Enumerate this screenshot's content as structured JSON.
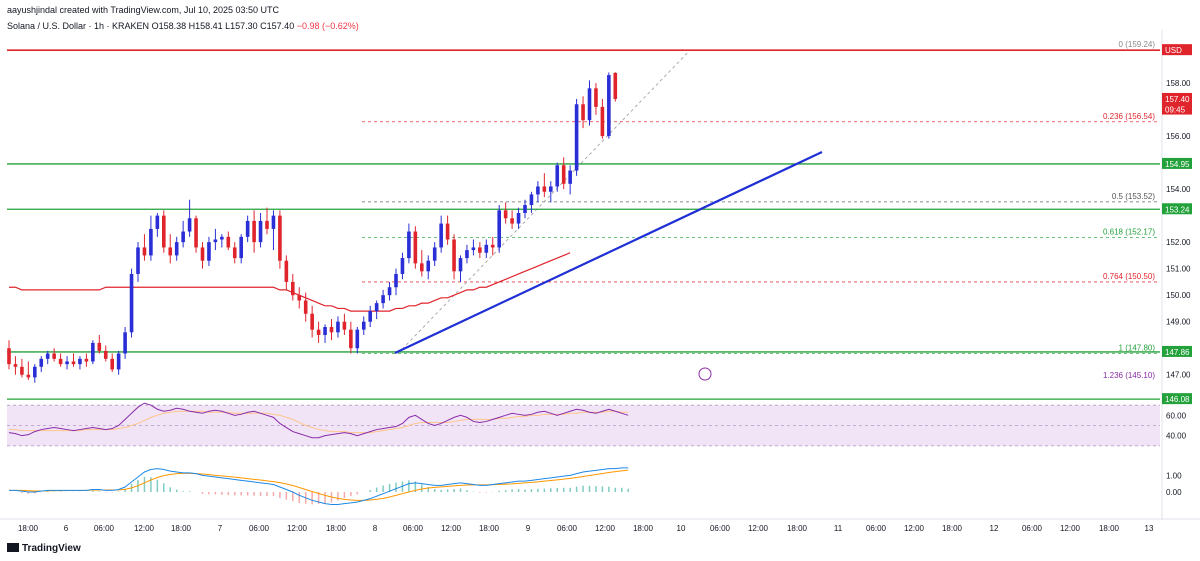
{
  "header": {
    "attribution": "aayushjindal created with TradingView.com, Jul 10, 2025 03:50 UTC",
    "symbol_prefix": "Solana / U.S. Dollar · 1h · KRAKEN",
    "ohlc": "O158.38 H158.41 L157.30 C157.40",
    "change": "−0.98 (−0.62%)"
  },
  "footer": {
    "brand": "TradingView"
  },
  "colors": {
    "up": "#2a2ed6",
    "down": "#e0242c",
    "ema": "#e0242c",
    "trend": "#1f2fd6",
    "support": "#23a13a",
    "fib": "#e0242c",
    "rsi": "#8a2ba8",
    "macd": "#1e88e5",
    "signal": "#ff9800"
  },
  "chart_data": {
    "type": "candlestick",
    "x_tick_labels": [
      "18:00",
      "6",
      "06:00",
      "12:00",
      "18:00",
      "7",
      "06:00",
      "12:00",
      "18:00",
      "8",
      "06:00",
      "12:00",
      "18:00",
      "9",
      "06:00",
      "12:00",
      "18:00",
      "10",
      "06:00",
      "12:00",
      "18:00",
      "11",
      "06:00",
      "12:00",
      "18:00",
      "12",
      "06:00",
      "12:00",
      "18:00",
      "13"
    ],
    "y_tick_labels": [
      "158.00",
      "156.00",
      "154.00",
      "152.00",
      "151.00",
      "150.00",
      "149.00",
      "147.00"
    ],
    "ylim": [
      146.5,
      160.0
    ],
    "candles": [
      {
        "o": 148.0,
        "h": 148.3,
        "l": 147.2,
        "c": 147.4
      },
      {
        "o": 147.4,
        "h": 147.7,
        "l": 147.0,
        "c": 147.3
      },
      {
        "o": 147.3,
        "h": 147.6,
        "l": 146.9,
        "c": 147.0
      },
      {
        "o": 147.0,
        "h": 147.5,
        "l": 146.8,
        "c": 146.9
      },
      {
        "o": 146.9,
        "h": 147.4,
        "l": 146.7,
        "c": 147.3
      },
      {
        "o": 147.3,
        "h": 147.7,
        "l": 147.1,
        "c": 147.6
      },
      {
        "o": 147.6,
        "h": 147.9,
        "l": 147.4,
        "c": 147.8
      },
      {
        "o": 147.8,
        "h": 148.0,
        "l": 147.5,
        "c": 147.6
      },
      {
        "o": 147.6,
        "h": 147.8,
        "l": 147.3,
        "c": 147.4
      },
      {
        "o": 147.4,
        "h": 147.7,
        "l": 147.2,
        "c": 147.5
      },
      {
        "o": 147.5,
        "h": 147.8,
        "l": 147.3,
        "c": 147.4
      },
      {
        "o": 147.4,
        "h": 147.7,
        "l": 147.2,
        "c": 147.6
      },
      {
        "o": 147.6,
        "h": 147.8,
        "l": 147.3,
        "c": 147.5
      },
      {
        "o": 147.5,
        "h": 148.3,
        "l": 147.4,
        "c": 148.2
      },
      {
        "o": 148.2,
        "h": 148.5,
        "l": 147.8,
        "c": 147.9
      },
      {
        "o": 147.9,
        "h": 148.1,
        "l": 147.5,
        "c": 147.6
      },
      {
        "o": 147.6,
        "h": 147.8,
        "l": 147.1,
        "c": 147.2
      },
      {
        "o": 147.2,
        "h": 147.9,
        "l": 147.0,
        "c": 147.8
      },
      {
        "o": 147.8,
        "h": 148.8,
        "l": 147.6,
        "c": 148.6
      },
      {
        "o": 148.6,
        "h": 151.0,
        "l": 148.4,
        "c": 150.8
      },
      {
        "o": 150.8,
        "h": 152.0,
        "l": 150.5,
        "c": 151.8
      },
      {
        "o": 151.8,
        "h": 152.3,
        "l": 151.3,
        "c": 151.5
      },
      {
        "o": 151.5,
        "h": 153.0,
        "l": 151.3,
        "c": 152.5
      },
      {
        "o": 152.5,
        "h": 153.1,
        "l": 152.2,
        "c": 153.0
      },
      {
        "o": 153.0,
        "h": 153.2,
        "l": 151.6,
        "c": 151.8
      },
      {
        "o": 151.8,
        "h": 152.3,
        "l": 151.2,
        "c": 151.5
      },
      {
        "o": 151.5,
        "h": 152.2,
        "l": 151.3,
        "c": 152.0
      },
      {
        "o": 152.0,
        "h": 152.8,
        "l": 151.8,
        "c": 152.4
      },
      {
        "o": 152.4,
        "h": 153.6,
        "l": 152.2,
        "c": 152.9
      },
      {
        "o": 152.9,
        "h": 153.0,
        "l": 151.6,
        "c": 151.8
      },
      {
        "o": 151.8,
        "h": 152.0,
        "l": 151.0,
        "c": 151.3
      },
      {
        "o": 151.3,
        "h": 152.2,
        "l": 151.1,
        "c": 152.0
      },
      {
        "o": 152.0,
        "h": 152.5,
        "l": 151.7,
        "c": 152.1
      },
      {
        "o": 152.1,
        "h": 152.3,
        "l": 151.8,
        "c": 152.2
      },
      {
        "o": 152.2,
        "h": 152.4,
        "l": 151.7,
        "c": 151.8
      },
      {
        "o": 151.8,
        "h": 152.0,
        "l": 151.2,
        "c": 151.4
      },
      {
        "o": 151.4,
        "h": 152.3,
        "l": 151.2,
        "c": 152.2
      },
      {
        "o": 152.2,
        "h": 153.0,
        "l": 152.0,
        "c": 152.8
      },
      {
        "o": 152.8,
        "h": 153.2,
        "l": 151.6,
        "c": 152.0
      },
      {
        "o": 152.0,
        "h": 153.1,
        "l": 151.8,
        "c": 152.8
      },
      {
        "o": 152.8,
        "h": 153.3,
        "l": 152.3,
        "c": 152.5
      },
      {
        "o": 152.5,
        "h": 153.2,
        "l": 151.7,
        "c": 153.0
      },
      {
        "o": 153.0,
        "h": 153.2,
        "l": 151.0,
        "c": 151.3
      },
      {
        "o": 151.3,
        "h": 151.5,
        "l": 150.2,
        "c": 150.5
      },
      {
        "o": 150.5,
        "h": 150.8,
        "l": 149.8,
        "c": 150.0
      },
      {
        "o": 150.0,
        "h": 150.3,
        "l": 149.5,
        "c": 149.8
      },
      {
        "o": 149.8,
        "h": 150.1,
        "l": 149.0,
        "c": 149.3
      },
      {
        "o": 149.3,
        "h": 149.6,
        "l": 148.4,
        "c": 148.7
      },
      {
        "o": 148.7,
        "h": 149.0,
        "l": 148.2,
        "c": 148.5
      },
      {
        "o": 148.5,
        "h": 148.9,
        "l": 148.2,
        "c": 148.8
      },
      {
        "o": 148.8,
        "h": 149.1,
        "l": 148.3,
        "c": 148.6
      },
      {
        "o": 148.6,
        "h": 149.2,
        "l": 148.4,
        "c": 149.0
      },
      {
        "o": 149.0,
        "h": 149.3,
        "l": 148.5,
        "c": 148.7
      },
      {
        "o": 148.7,
        "h": 149.0,
        "l": 147.8,
        "c": 148.0
      },
      {
        "o": 148.0,
        "h": 148.8,
        "l": 147.8,
        "c": 148.7
      },
      {
        "o": 148.7,
        "h": 149.2,
        "l": 148.5,
        "c": 149.0
      },
      {
        "o": 149.0,
        "h": 149.6,
        "l": 148.8,
        "c": 149.4
      },
      {
        "o": 149.4,
        "h": 149.8,
        "l": 149.1,
        "c": 149.7
      },
      {
        "o": 149.7,
        "h": 150.2,
        "l": 149.5,
        "c": 150.0
      },
      {
        "o": 150.0,
        "h": 150.5,
        "l": 149.8,
        "c": 150.3
      },
      {
        "o": 150.3,
        "h": 151.0,
        "l": 150.0,
        "c": 150.8
      },
      {
        "o": 150.8,
        "h": 151.6,
        "l": 150.6,
        "c": 151.4
      },
      {
        "o": 151.4,
        "h": 152.7,
        "l": 151.2,
        "c": 152.4
      },
      {
        "o": 152.4,
        "h": 152.6,
        "l": 151.0,
        "c": 151.2
      },
      {
        "o": 151.2,
        "h": 151.7,
        "l": 150.7,
        "c": 150.9
      },
      {
        "o": 150.9,
        "h": 151.5,
        "l": 150.6,
        "c": 151.3
      },
      {
        "o": 151.3,
        "h": 152.0,
        "l": 151.1,
        "c": 151.8
      },
      {
        "o": 151.8,
        "h": 153.0,
        "l": 151.6,
        "c": 152.7
      },
      {
        "o": 152.7,
        "h": 153.0,
        "l": 151.9,
        "c": 152.1
      },
      {
        "o": 152.1,
        "h": 152.3,
        "l": 150.6,
        "c": 150.9
      },
      {
        "o": 150.9,
        "h": 151.5,
        "l": 150.5,
        "c": 151.4
      },
      {
        "o": 151.4,
        "h": 151.9,
        "l": 151.2,
        "c": 151.7
      },
      {
        "o": 151.7,
        "h": 152.1,
        "l": 151.5,
        "c": 151.8
      },
      {
        "o": 151.8,
        "h": 152.0,
        "l": 151.4,
        "c": 151.6
      },
      {
        "o": 151.6,
        "h": 152.1,
        "l": 151.4,
        "c": 151.9
      },
      {
        "o": 151.9,
        "h": 152.2,
        "l": 151.5,
        "c": 151.8
      },
      {
        "o": 151.8,
        "h": 153.4,
        "l": 151.6,
        "c": 153.2
      },
      {
        "o": 153.2,
        "h": 153.5,
        "l": 152.7,
        "c": 152.9
      },
      {
        "o": 152.9,
        "h": 153.2,
        "l": 152.5,
        "c": 152.7
      },
      {
        "o": 152.7,
        "h": 153.3,
        "l": 152.5,
        "c": 153.1
      },
      {
        "o": 153.1,
        "h": 153.6,
        "l": 152.9,
        "c": 153.4
      },
      {
        "o": 153.4,
        "h": 153.9,
        "l": 153.1,
        "c": 153.8
      },
      {
        "o": 153.8,
        "h": 154.3,
        "l": 153.5,
        "c": 154.1
      },
      {
        "o": 154.1,
        "h": 154.6,
        "l": 153.7,
        "c": 153.9
      },
      {
        "o": 153.9,
        "h": 154.3,
        "l": 153.5,
        "c": 154.1
      },
      {
        "o": 154.1,
        "h": 155.0,
        "l": 153.9,
        "c": 154.9
      },
      {
        "o": 154.9,
        "h": 155.2,
        "l": 154.0,
        "c": 154.2
      },
      {
        "o": 154.2,
        "h": 154.9,
        "l": 153.8,
        "c": 154.7
      },
      {
        "o": 154.7,
        "h": 157.4,
        "l": 154.5,
        "c": 157.2
      },
      {
        "o": 157.2,
        "h": 157.5,
        "l": 156.3,
        "c": 156.6
      },
      {
        "o": 156.6,
        "h": 158.1,
        "l": 156.4,
        "c": 157.8
      },
      {
        "o": 157.8,
        "h": 158.0,
        "l": 156.8,
        "c": 157.1
      },
      {
        "o": 157.1,
        "h": 157.4,
        "l": 155.9,
        "c": 156.0
      },
      {
        "o": 156.0,
        "h": 158.4,
        "l": 155.9,
        "c": 158.3
      },
      {
        "o": 158.38,
        "h": 158.41,
        "l": 157.3,
        "c": 157.4
      }
    ],
    "ema": [
      150.3,
      150.3,
      150.2,
      150.2,
      150.2,
      150.2,
      150.2,
      150.2,
      150.2,
      150.2,
      150.2,
      150.2,
      150.2,
      150.2,
      150.2,
      150.3,
      150.3,
      150.3,
      150.3,
      150.3,
      150.3,
      150.3,
      150.3,
      150.3,
      150.3,
      150.3,
      150.3,
      150.3,
      150.3,
      150.3,
      150.3,
      150.3,
      150.3,
      150.3,
      150.3,
      150.3,
      150.3,
      150.3,
      150.3,
      150.3,
      150.3,
      150.3,
      150.2,
      150.2,
      150.1,
      150.0,
      149.9,
      149.8,
      149.7,
      149.6,
      149.6,
      149.5,
      149.5,
      149.4,
      149.4,
      149.4,
      149.4,
      149.4,
      149.4,
      149.4,
      149.5,
      149.5,
      149.6,
      149.6,
      149.7,
      149.7,
      149.8,
      149.9,
      149.9,
      150.0,
      150.1,
      150.2,
      150.2,
      150.3,
      150.3,
      150.4,
      150.5,
      150.6,
      150.7,
      150.8,
      150.9,
      151.0,
      151.1,
      151.2,
      151.3,
      151.4,
      151.5,
      151.6
    ],
    "resistance_level": 159.24,
    "support_levels": [
      154.95,
      153.24,
      147.86,
      146.08
    ],
    "price_tags": [
      {
        "label": "USD",
        "value": 159.24,
        "bg": "#e0242c"
      },
      {
        "label": "157.40",
        "value": 157.4,
        "bg": "#e0242c"
      },
      {
        "label": "09:45",
        "value": 157.0,
        "bg": "#e0242c"
      },
      {
        "label": "154.95",
        "value": 154.95,
        "bg": "#23a13a"
      },
      {
        "label": "153.24",
        "value": 153.24,
        "bg": "#23a13a"
      },
      {
        "label": "147.86",
        "value": 147.86,
        "bg": "#23a13a"
      },
      {
        "label": "146.08",
        "value": 146.08,
        "bg": "#23a13a"
      }
    ],
    "fib_levels": [
      {
        "label": "0 (159.24)",
        "value": 159.24,
        "color": "#888888"
      },
      {
        "label": "0.236 (156.54)",
        "value": 156.54,
        "color": "#e0242c"
      },
      {
        "label": "0.5 (153.52)",
        "value": 153.52,
        "color": "#555555"
      },
      {
        "label": "0.618 (152.17)",
        "value": 152.17,
        "color": "#23a13a"
      },
      {
        "label": "0.764 (150.50)",
        "value": 150.5,
        "color": "#e0242c"
      },
      {
        "label": "1 (147.80)",
        "value": 147.8,
        "color": "#23a13a"
      },
      {
        "label": "1.236 (145.10)",
        "value": 145.1,
        "color": "#8a2ba8"
      }
    ],
    "rsi": {
      "y_tick_labels": [
        "60.00",
        "40.00"
      ],
      "band": [
        30,
        70
      ],
      "values": [
        43,
        42,
        40,
        41,
        44,
        46,
        47,
        48,
        47,
        46,
        45,
        46,
        47,
        48,
        47,
        46,
        47,
        50,
        56,
        62,
        68,
        72,
        70,
        66,
        64,
        65,
        67,
        66,
        64,
        63,
        62,
        64,
        65,
        64,
        62,
        60,
        61,
        63,
        64,
        62,
        60,
        58,
        52,
        48,
        44,
        42,
        40,
        38,
        38,
        40,
        41,
        42,
        43,
        42,
        40,
        42,
        44,
        46,
        47,
        48,
        49,
        52,
        58,
        60,
        56,
        52,
        50,
        52,
        55,
        58,
        60,
        58,
        54,
        53,
        54,
        56,
        58,
        60,
        62,
        61,
        60,
        61,
        63,
        64,
        62,
        60,
        62,
        64,
        66,
        65,
        63,
        62,
        64,
        66,
        64,
        62,
        60
      ],
      "signal": [
        46,
        46,
        45,
        45,
        45,
        45,
        45,
        45,
        45,
        45,
        45,
        45,
        46,
        46,
        46,
        46,
        46,
        47,
        48,
        50,
        52,
        55,
        58,
        60,
        62,
        63,
        64,
        64,
        64,
        64,
        64,
        63,
        63,
        63,
        63,
        62,
        62,
        62,
        62,
        62,
        62,
        61,
        60,
        58,
        56,
        53,
        50,
        48,
        46,
        45,
        44,
        44,
        44,
        43,
        43,
        43,
        43,
        44,
        45,
        46,
        47,
        48,
        50,
        52,
        53,
        53,
        53,
        53,
        53,
        54,
        55,
        56,
        56,
        56,
        56,
        56,
        57,
        57,
        58,
        59,
        59,
        60,
        60,
        61,
        61,
        61,
        61,
        62,
        62,
        63,
        63,
        63,
        63,
        64,
        64,
        63,
        63
      ]
    },
    "macd": {
      "y_tick_labels": [
        "1.00",
        "0.00"
      ],
      "macd": [
        0.1,
        0.1,
        0.05,
        0.0,
        0.0,
        0.05,
        0.1,
        0.1,
        0.1,
        0.1,
        0.1,
        0.1,
        0.1,
        0.15,
        0.15,
        0.1,
        0.1,
        0.15,
        0.3,
        0.6,
        0.9,
        1.2,
        1.35,
        1.4,
        1.35,
        1.25,
        1.2,
        1.15,
        1.15,
        1.1,
        1.0,
        0.95,
        0.9,
        0.85,
        0.8,
        0.75,
        0.7,
        0.65,
        0.6,
        0.55,
        0.5,
        0.45,
        0.3,
        0.15,
        0.0,
        -0.2,
        -0.35,
        -0.5,
        -0.6,
        -0.7,
        -0.75,
        -0.75,
        -0.7,
        -0.65,
        -0.6,
        -0.5,
        -0.4,
        -0.25,
        -0.1,
        0.05,
        0.2,
        0.35,
        0.5,
        0.55,
        0.5,
        0.45,
        0.4,
        0.4,
        0.45,
        0.5,
        0.55,
        0.5,
        0.45,
        0.4,
        0.4,
        0.45,
        0.5,
        0.55,
        0.6,
        0.65,
        0.65,
        0.7,
        0.75,
        0.8,
        0.85,
        0.9,
        0.95,
        1.0,
        1.1,
        1.2,
        1.25,
        1.3,
        1.35,
        1.4,
        1.4,
        1.45,
        1.45
      ],
      "signal": [
        0.1,
        0.1,
        0.1,
        0.08,
        0.06,
        0.06,
        0.07,
        0.08,
        0.08,
        0.09,
        0.09,
        0.09,
        0.1,
        0.11,
        0.12,
        0.12,
        0.12,
        0.13,
        0.16,
        0.25,
        0.38,
        0.55,
        0.72,
        0.87,
        0.98,
        1.05,
        1.1,
        1.12,
        1.12,
        1.1,
        1.08,
        1.05,
        1.0,
        0.97,
        0.93,
        0.89,
        0.85,
        0.8,
        0.76,
        0.72,
        0.67,
        0.62,
        0.56,
        0.48,
        0.39,
        0.27,
        0.15,
        0.03,
        -0.09,
        -0.2,
        -0.3,
        -0.38,
        -0.44,
        -0.48,
        -0.5,
        -0.5,
        -0.48,
        -0.44,
        -0.38,
        -0.3,
        -0.2,
        -0.1,
        0.0,
        0.1,
        0.18,
        0.24,
        0.28,
        0.31,
        0.34,
        0.37,
        0.4,
        0.42,
        0.43,
        0.43,
        0.43,
        0.44,
        0.45,
        0.47,
        0.49,
        0.52,
        0.55,
        0.58,
        0.61,
        0.65,
        0.69,
        0.73,
        0.77,
        0.82,
        0.87,
        0.93,
        0.99,
        1.05,
        1.11,
        1.17,
        1.22,
        1.27,
        1.31
      ]
    }
  }
}
